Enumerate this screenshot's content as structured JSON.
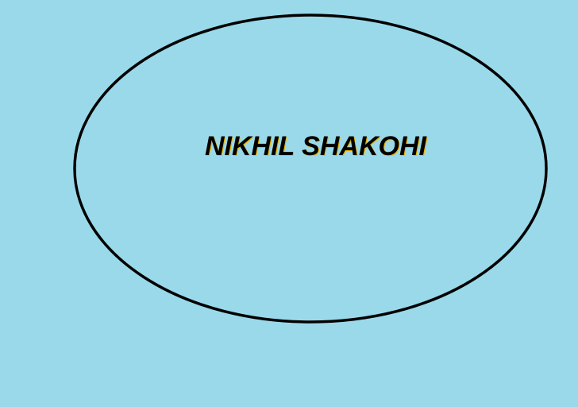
{
  "drawing": {
    "label": "NIKHIL SHAKOHI"
  },
  "colors": {
    "background": "#99d9ea",
    "outline": "#000000",
    "text": "#000000",
    "text_shadow": "#e8b300"
  }
}
